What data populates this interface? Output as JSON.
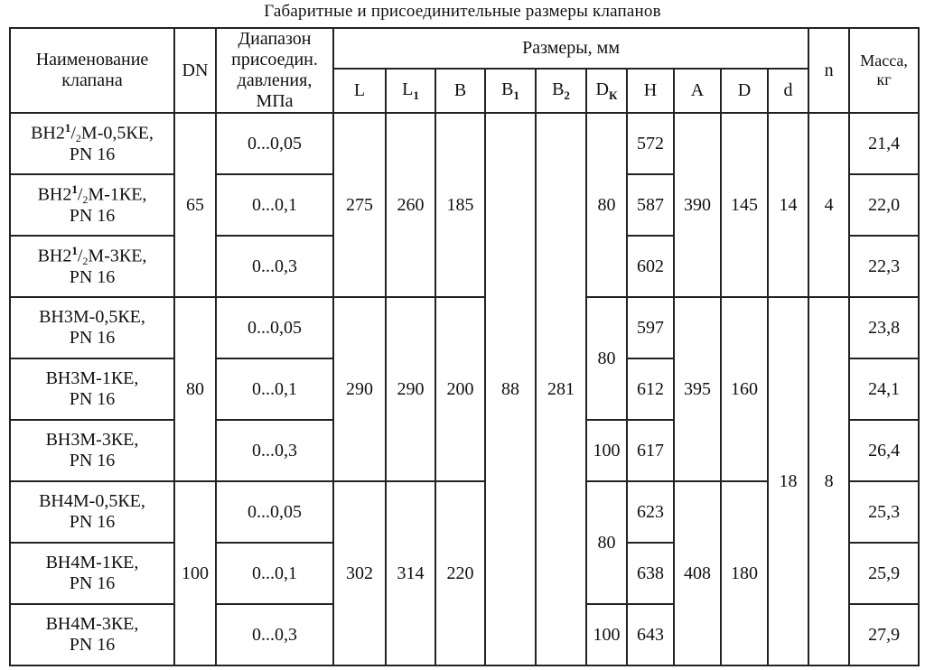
{
  "title": "Габаритные и присоединительные размеры клапанов",
  "headers": {
    "name": [
      "Наименование",
      "клапана"
    ],
    "dn": "DN",
    "pressure": [
      "Диапазон",
      "присоедин.",
      "давления,",
      "МПа"
    ],
    "sizes_group": "Размеры, мм",
    "L": "L",
    "L1": {
      "base": "L",
      "sub": "1"
    },
    "B": "B",
    "B1": {
      "base": "B",
      "sub": "1"
    },
    "B2": {
      "base": "B",
      "sub": "2"
    },
    "Dk": {
      "base": "D",
      "sub": "К"
    },
    "H": "H",
    "A": "A",
    "D": "D",
    "d": "d",
    "n": "n",
    "mass": [
      "Масса,",
      "кг"
    ]
  },
  "rows": [
    {
      "name_pre": "ВН2",
      "name_frac_num": "1",
      "name_frac_den": "2",
      "name_post": "М-0,5КЕ,",
      "name_line2": "PN 16",
      "pressure": "0...0,05",
      "H": "572",
      "mass": "21,4"
    },
    {
      "name_pre": "ВН2",
      "name_frac_num": "1",
      "name_frac_den": "2",
      "name_post": "М-1КЕ,",
      "name_line2": "PN 16",
      "pressure": "0...0,1",
      "H": "587",
      "mass": "22,0"
    },
    {
      "name_pre": "ВН2",
      "name_frac_num": "1",
      "name_frac_den": "2",
      "name_post": "М-3КЕ,",
      "name_line2": "PN 16",
      "pressure": "0...0,3",
      "H": "602",
      "mass": "22,3"
    },
    {
      "name_pre": "ВН3М-0,5КЕ,",
      "name_line2": "PN 16",
      "pressure": "0...0,05",
      "H": "597",
      "mass": "23,8"
    },
    {
      "name_pre": "ВН3М-1КЕ,",
      "name_line2": "PN 16",
      "pressure": "0...0,1",
      "H": "612",
      "mass": "24,1"
    },
    {
      "name_pre": "ВН3М-3КЕ,",
      "name_line2": "PN 16",
      "pressure": "0...0,3",
      "H": "617",
      "mass": "26,4"
    },
    {
      "name_pre": "ВН4М-0,5КЕ,",
      "name_line2": "PN 16",
      "pressure": "0...0,05",
      "H": "623",
      "mass": "25,3"
    },
    {
      "name_pre": "ВН4М-1КЕ,",
      "name_line2": "PN 16",
      "pressure": "0...0,1",
      "H": "638",
      "mass": "25,9"
    },
    {
      "name_pre": "ВН4М-3КЕ,",
      "name_line2": "PN 16",
      "pressure": "0...0,3",
      "H": "643",
      "mass": "27,9"
    }
  ],
  "groups": [
    {
      "dn": "65",
      "L": "275",
      "L1": "260",
      "B": "185",
      "Dk": "80",
      "A": "390",
      "D": "145",
      "d": "14",
      "n": "4"
    },
    {
      "dn": "80",
      "L": "290",
      "L1": "290",
      "B": "200",
      "Dk_top": "80",
      "Dk_bottom": "100",
      "A": "395",
      "D": "160"
    },
    {
      "dn": "100",
      "L": "302",
      "L1": "314",
      "B": "220",
      "Dk_top": "80",
      "Dk_bottom": "100",
      "A": "408",
      "D": "180"
    }
  ],
  "shared": {
    "B1": "88",
    "B2": "281",
    "d": "18",
    "n": "8"
  }
}
